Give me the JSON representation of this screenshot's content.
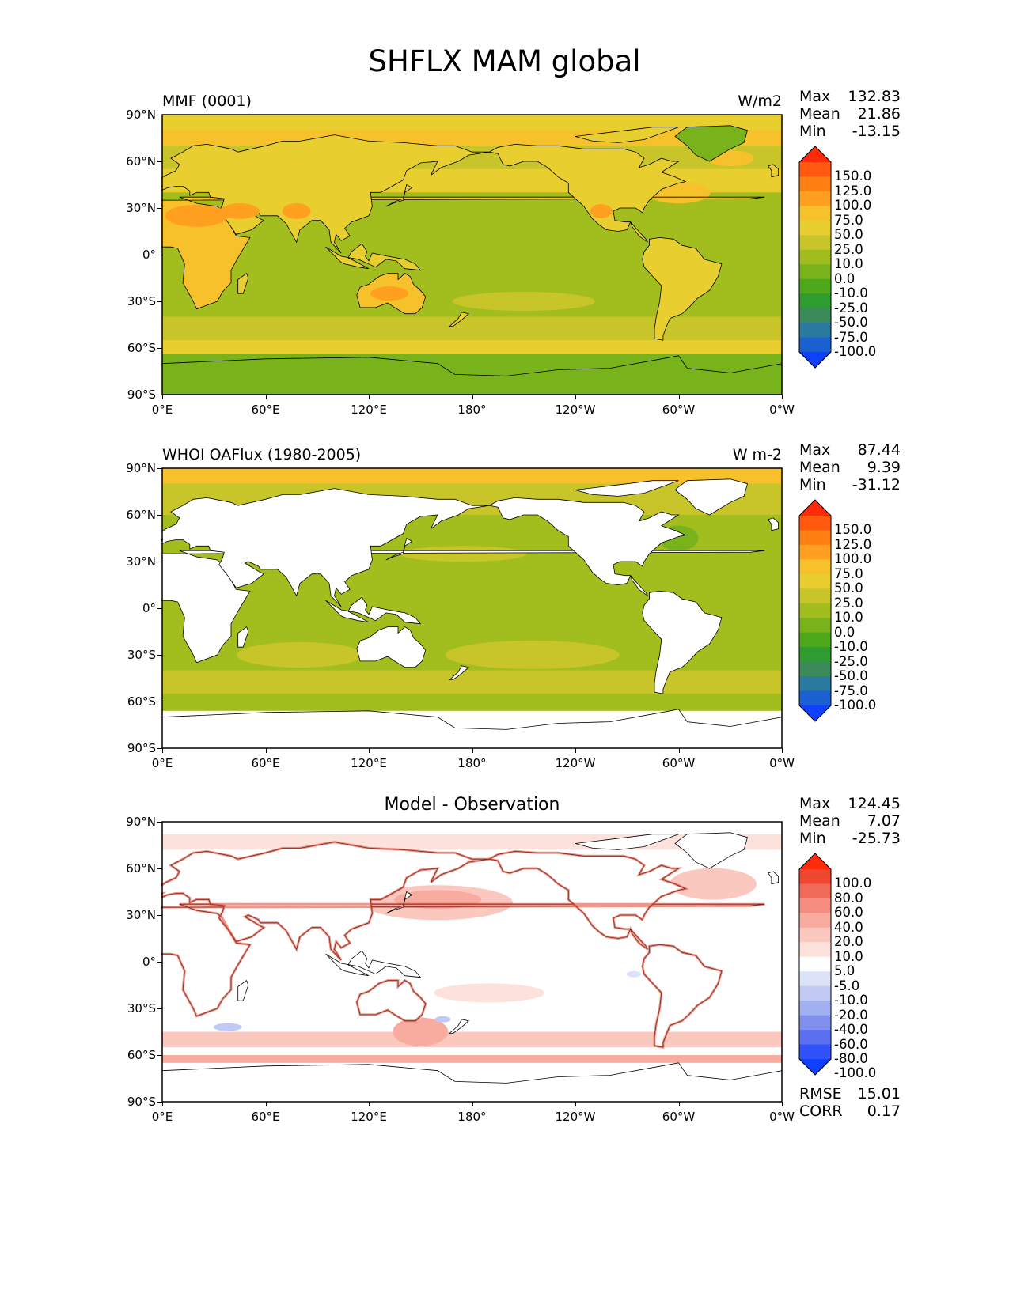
{
  "title": "SHFLX MAM global",
  "y_ticks": [
    "90°N",
    "60°N",
    "30°N",
    "0°",
    "30°S",
    "60°S",
    "90°S"
  ],
  "x_ticks": [
    "0°E",
    "60°E",
    "120°E",
    "180°",
    "120°W",
    "60°W",
    "0°W"
  ],
  "panels": [
    {
      "left_title": "MMF (0001)",
      "right_title": "W/m2",
      "center_title": "",
      "stats": [
        {
          "k": "Max",
          "v": "132.83"
        },
        {
          "k": "Mean",
          "v": "21.86"
        },
        {
          "k": "Min",
          "v": "-13.15"
        }
      ],
      "colorbar": {
        "labels": [
          "150.0",
          "125.0",
          "100.0",
          "75.0",
          "50.0",
          "25.0",
          "10.0",
          "0.0",
          "-10.0",
          "-25.0",
          "-50.0",
          "-75.0",
          "-100.0"
        ],
        "colors": [
          "#ff2a0a",
          "#ff5a10",
          "#ff7f12",
          "#ffa020",
          "#f7c12c",
          "#e8cf2f",
          "#c8c52a",
          "#a2be1e",
          "#78b31c",
          "#4ea81c",
          "#2e9c30",
          "#3a8a5a",
          "#2a7aa0",
          "#1a60d0",
          "#1040ff"
        ]
      },
      "map_style": "model"
    },
    {
      "left_title": "WHOI OAFlux (1980-2005)",
      "right_title": "W m-2",
      "center_title": "",
      "stats": [
        {
          "k": "Max",
          "v": "87.44"
        },
        {
          "k": "Mean",
          "v": "9.39"
        },
        {
          "k": "Min",
          "v": "-31.12"
        }
      ],
      "colorbar": {
        "labels": [
          "150.0",
          "125.0",
          "100.0",
          "75.0",
          "50.0",
          "25.0",
          "10.0",
          "0.0",
          "-10.0",
          "-25.0",
          "-50.0",
          "-75.0",
          "-100.0"
        ],
        "colors": [
          "#ff2a0a",
          "#ff5a10",
          "#ff7f12",
          "#ffa020",
          "#f7c12c",
          "#e8cf2f",
          "#c8c52a",
          "#a2be1e",
          "#78b31c",
          "#4ea81c",
          "#2e9c30",
          "#3a8a5a",
          "#2a7aa0",
          "#1a60d0",
          "#1040ff"
        ]
      },
      "map_style": "obs"
    },
    {
      "left_title": "",
      "right_title": "",
      "center_title": "Model - Observation",
      "stats": [
        {
          "k": "Max",
          "v": "124.45"
        },
        {
          "k": "Mean",
          "v": "7.07"
        },
        {
          "k": "Min",
          "v": "-25.73"
        }
      ],
      "colorbar": {
        "labels": [
          "100.0",
          "80.0",
          "60.0",
          "40.0",
          "20.0",
          "10.0",
          "5.0",
          "-5.0",
          "-10.0",
          "-20.0",
          "-40.0",
          "-60.0",
          "-80.0",
          "-100.0"
        ],
        "colors": [
          "#ff2a0a",
          "#f04830",
          "#f06a5a",
          "#f58c80",
          "#f8aca0",
          "#fbc8c0",
          "#fde2dc",
          "#ffffff",
          "#dce2f8",
          "#c0caf4",
          "#a0b0f0",
          "#8090ec",
          "#5a70f0",
          "#3050f8",
          "#1040ff"
        ]
      },
      "map_style": "diff"
    }
  ],
  "footer_stats": [
    {
      "k": "RMSE",
      "v": "15.01"
    },
    {
      "k": "CORR",
      "v": "0.17"
    }
  ]
}
